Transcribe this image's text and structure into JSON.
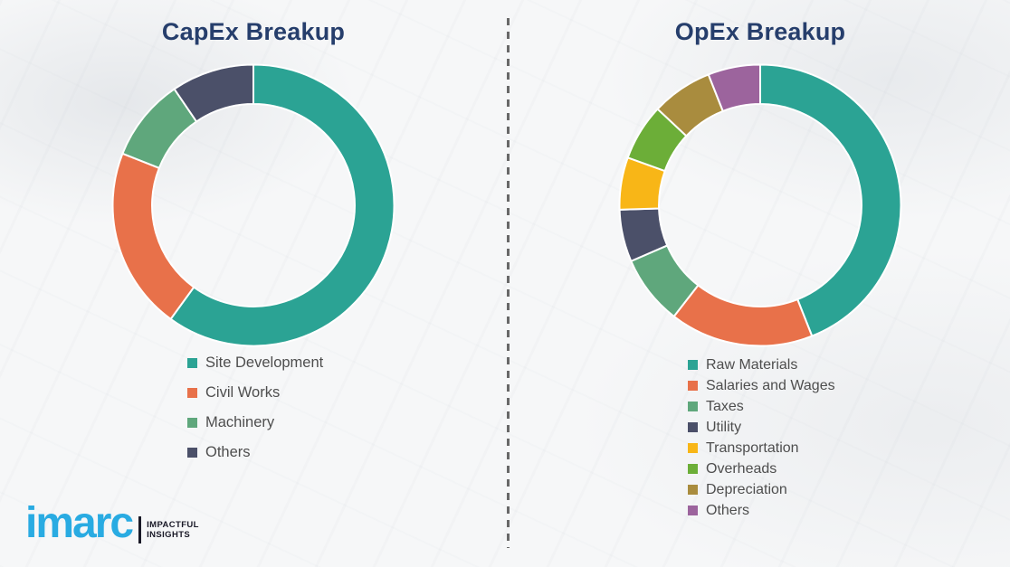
{
  "page": {
    "background_color": "#f6f7f8",
    "title_color": "#263e6c",
    "legend_text_color": "#4e4e4e"
  },
  "divider": {
    "style": "vertical-dashed",
    "color": "#686868"
  },
  "chart_data": [
    {
      "type": "donut",
      "title": "CapEx Breakup",
      "categories": [
        "Site Development",
        "Civil Works",
        "Machinery",
        "Others"
      ],
      "values": [
        60,
        21,
        9.5,
        9.5
      ],
      "unit": "percent",
      "colors": [
        "#2ba394",
        "#e8714a",
        "#5fa77c",
        "#4b5069"
      ],
      "start_angle_deg": 0,
      "direction": "clockwise",
      "inner_radius_ratio": 0.72,
      "segment_gap_color": "#ffffff",
      "legend_position": "below-chart-left"
    },
    {
      "type": "donut",
      "title": "OpEx Breakup",
      "categories": [
        "Raw Materials",
        "Salaries and Wages",
        "Taxes",
        "Utility",
        "Transportation",
        "Overheads",
        "Depreciation",
        "Others"
      ],
      "values": [
        44,
        16.5,
        8,
        6,
        6,
        6.5,
        7,
        6
      ],
      "unit": "percent",
      "colors": [
        "#2ba394",
        "#e8714a",
        "#5fa77c",
        "#4b5069",
        "#f8b617",
        "#6cae38",
        "#a98c3e",
        "#9c649d"
      ],
      "start_angle_deg": 0,
      "direction": "clockwise",
      "inner_radius_ratio": 0.72,
      "segment_gap_color": "#ffffff",
      "legend_position": "below-chart-left"
    }
  ],
  "logo": {
    "brand": "imarc",
    "brand_color": "#29abe2",
    "tagline": [
      "IMPACTFUL",
      "INSIGHTS"
    ]
  }
}
